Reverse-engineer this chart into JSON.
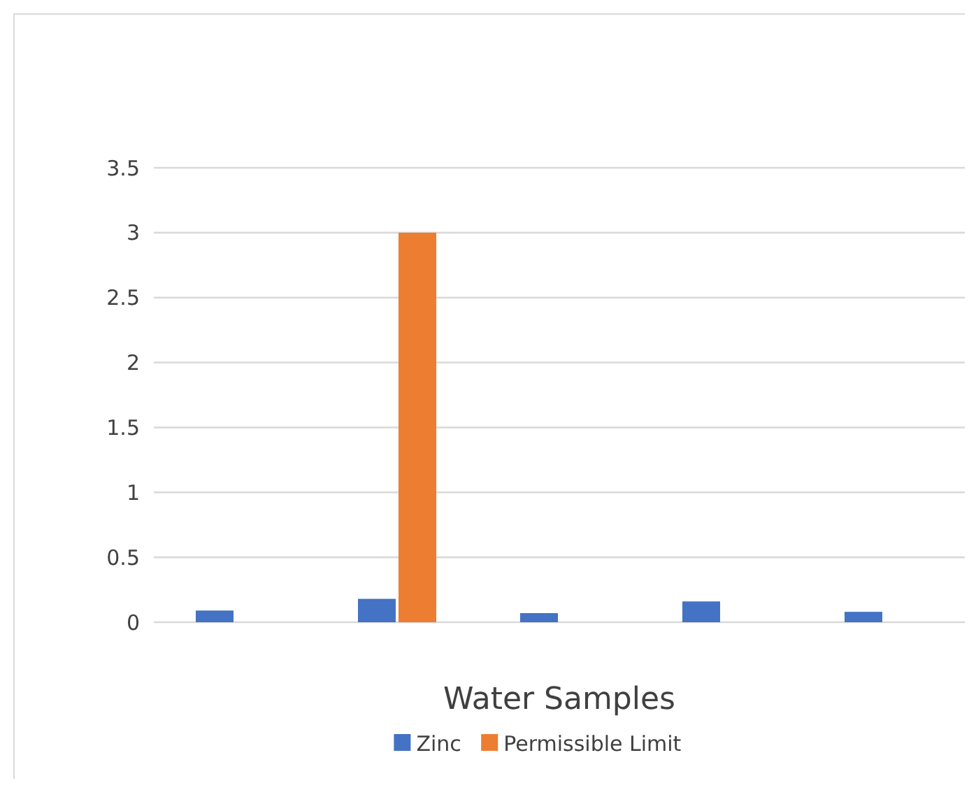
{
  "chart_data": {
    "type": "bar",
    "xlabel": "Water Samples",
    "categories": [
      null,
      null,
      null,
      null,
      null
    ],
    "series": [
      {
        "name": "Zinc",
        "color": "#4472c4",
        "values": [
          0.09,
          0.18,
          0.07,
          0.16,
          0.08
        ]
      },
      {
        "name": "Permissible Limit",
        "color": "#ed7d31",
        "values": [
          null,
          3,
          null,
          null,
          null
        ]
      }
    ],
    "ylim": [
      0,
      3.5
    ],
    "yticks": [
      0,
      0.5,
      1,
      1.5,
      2,
      2.5,
      3,
      3.5
    ],
    "grid": "y",
    "legend": "bottom"
  }
}
